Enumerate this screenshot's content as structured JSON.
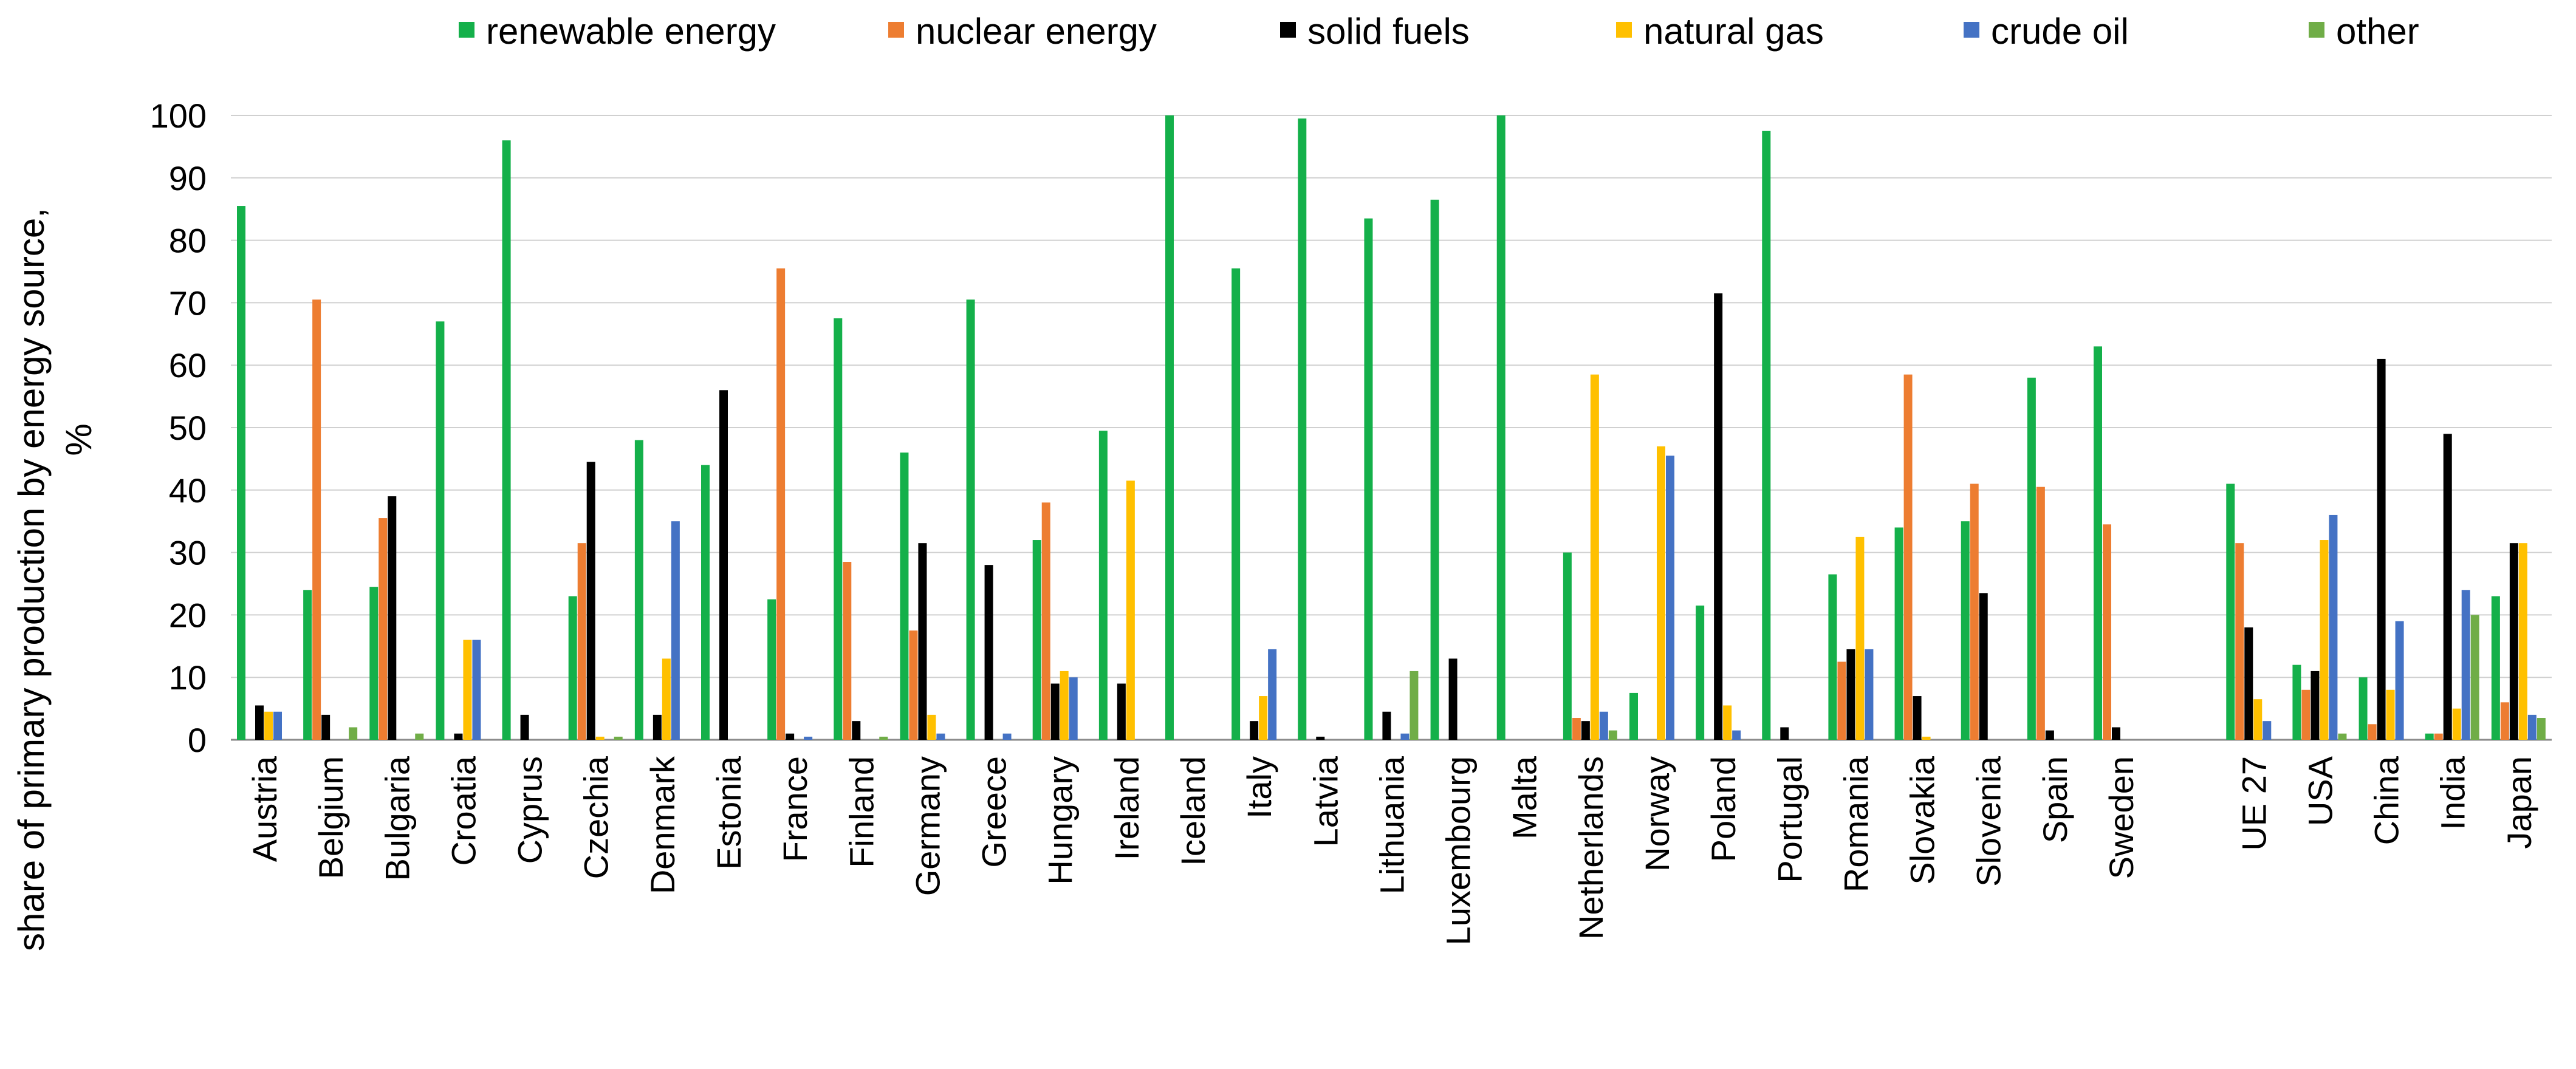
{
  "chart_data": {
    "type": "bar",
    "title": "",
    "xlabel": "",
    "ylabel": [
      "share of primary production by energy source,",
      "%"
    ],
    "ylim": [
      0,
      100
    ],
    "yticks": [
      0,
      10,
      20,
      30,
      40,
      50,
      60,
      70,
      80,
      90,
      100
    ],
    "grid": "horizontal",
    "legend_position": "top",
    "categories": [
      "Austria",
      "Belgium",
      "Bulgaria",
      "Croatia",
      "Cyprus",
      "Czechia",
      "Denmark",
      "Estonia",
      "France",
      "Finland",
      "Germany",
      "Greece",
      "Hungary",
      "Ireland",
      "Iceland",
      "Italy",
      "Latvia",
      "Lithuania",
      "Luxembourg",
      "Malta",
      "Netherlands",
      "Norway",
      "Poland",
      "Portugal",
      "Romania",
      "Slovakia",
      "Slovenia",
      "Spain",
      "Sweden",
      "",
      "UE 27",
      "USA",
      "China",
      "India",
      "Japan"
    ],
    "series": [
      {
        "name": "renewable energy",
        "color": "#14b04a",
        "values": [
          85.5,
          24,
          24.5,
          67,
          96,
          23,
          48,
          44,
          22.5,
          67.5,
          46,
          70.5,
          32,
          49.5,
          100,
          75.5,
          99.5,
          83.5,
          86.5,
          100,
          30,
          7.5,
          21.5,
          97.5,
          26.5,
          34,
          35,
          58,
          63,
          null,
          41,
          12,
          10,
          1,
          23
        ]
      },
      {
        "name": "nuclear energy",
        "color": "#ed7d31",
        "values": [
          0,
          70.5,
          35.5,
          0,
          0,
          31.5,
          0,
          0,
          75.5,
          28.5,
          17.5,
          0,
          38,
          0,
          0,
          0,
          0,
          0,
          0,
          0,
          3.5,
          0,
          0,
          0,
          12.5,
          58.5,
          41,
          40.5,
          34.5,
          null,
          31.5,
          8,
          2.5,
          1,
          6
        ]
      },
      {
        "name": "solid fuels",
        "color": "#000000",
        "values": [
          5.5,
          4,
          39,
          1,
          4,
          44.5,
          4,
          56,
          1,
          3,
          31.5,
          28,
          9,
          9,
          0,
          3,
          0.5,
          4.5,
          13,
          0,
          3,
          0,
          71.5,
          2,
          14.5,
          7,
          23.5,
          1.5,
          2,
          null,
          18,
          11,
          61,
          49,
          31.5
        ]
      },
      {
        "name": "natural gas",
        "color": "#ffc000",
        "values": [
          4.5,
          0,
          0,
          16,
          0,
          0.5,
          13,
          0,
          0,
          0,
          4,
          0,
          11,
          41.5,
          0,
          7,
          0,
          0,
          0,
          0,
          58.5,
          47,
          5.5,
          0,
          32.5,
          0.5,
          0,
          0,
          0,
          null,
          6.5,
          32,
          8,
          5,
          31.5
        ]
      },
      {
        "name": "crude oil",
        "color": "#4472c4",
        "values": [
          4.5,
          0,
          0,
          16,
          0,
          0,
          35,
          0,
          0.5,
          0,
          1,
          1,
          10,
          0,
          0,
          14.5,
          0,
          1,
          0,
          0,
          4.5,
          45.5,
          1.5,
          0,
          14.5,
          0,
          0,
          0,
          0,
          null,
          3,
          36,
          19,
          24,
          4
        ]
      },
      {
        "name": "other",
        "color": "#70ad47",
        "values": [
          0,
          2,
          1,
          0,
          0,
          0.5,
          0,
          0,
          0,
          0.5,
          0,
          0,
          0,
          0,
          0,
          0,
          0,
          11,
          0,
          0,
          1.5,
          0,
          0,
          0,
          0,
          0,
          0,
          0,
          0,
          null,
          0,
          1,
          0,
          20,
          3.5
        ]
      }
    ]
  }
}
